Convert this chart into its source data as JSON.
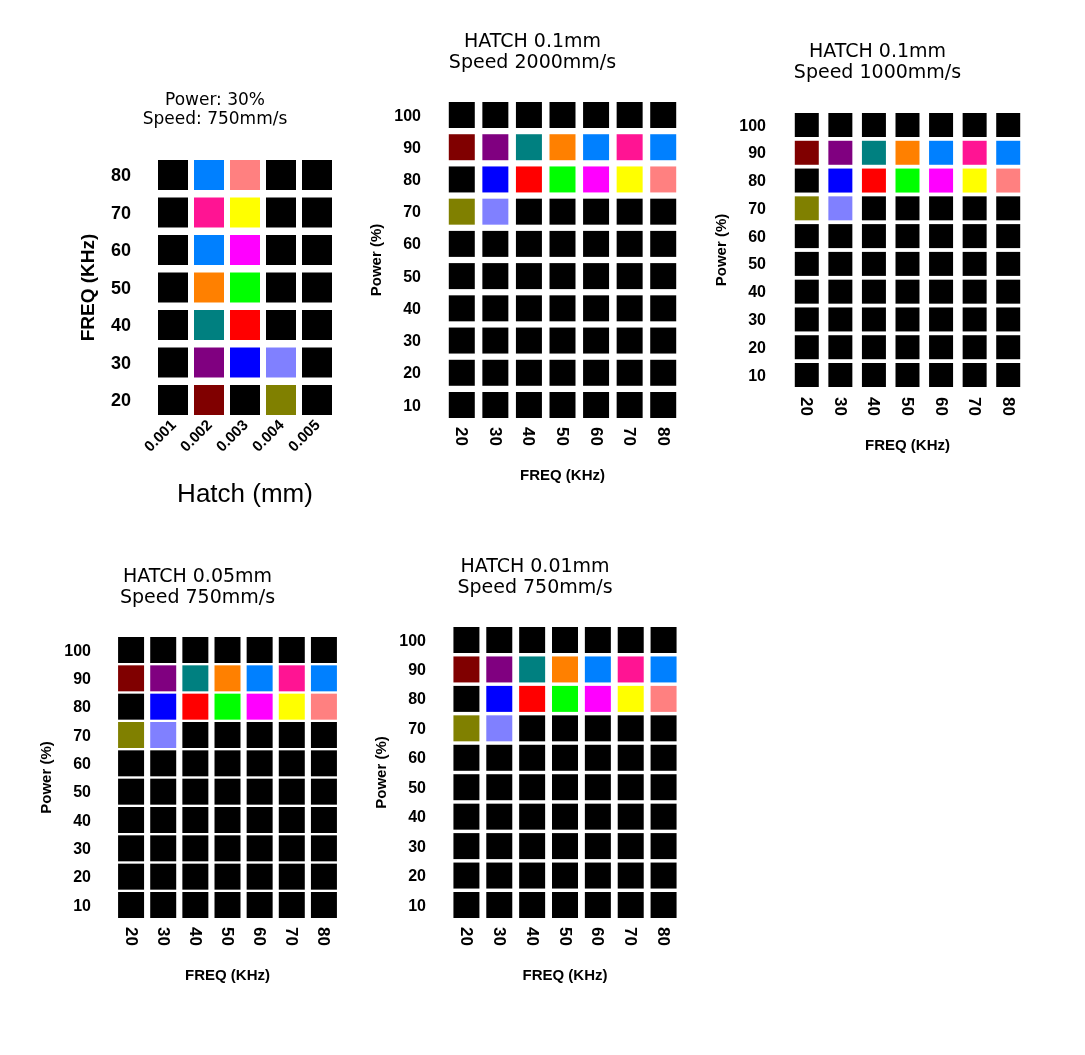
{
  "chart_data": [
    {
      "type": "scatter",
      "title": "Power: 30%",
      "subtitle": "Speed: 750mm/s",
      "xlabel": "Hatch (mm)",
      "ylabel": "FREQ (KHz)",
      "categories": [
        "0.001",
        "0.002",
        "0.003",
        "0.004",
        "0.005"
      ],
      "ylim": [
        20,
        80
      ],
      "yticks": [
        20,
        30,
        40,
        50,
        60,
        70,
        80
      ],
      "marker": "square",
      "series": [
        {
          "values": [
            80,
            80,
            80,
            80,
            80
          ],
          "colors": [
            "#000000",
            "#0080ff",
            "#ff8080",
            "#000000",
            "#000000"
          ]
        },
        {
          "values": [
            70,
            70,
            70,
            70,
            70
          ],
          "colors": [
            "#000000",
            "#ff1493",
            "#ffff00",
            "#000000",
            "#000000"
          ]
        },
        {
          "values": [
            60,
            60,
            60,
            60,
            60
          ],
          "colors": [
            "#000000",
            "#0080ff",
            "#ff00ff",
            "#000000",
            "#000000"
          ]
        },
        {
          "values": [
            50,
            50,
            50,
            50,
            50
          ],
          "colors": [
            "#000000",
            "#ff8000",
            "#00ff00",
            "#000000",
            "#000000"
          ]
        },
        {
          "values": [
            40,
            40,
            40,
            40,
            40
          ],
          "colors": [
            "#000000",
            "#008080",
            "#ff0000",
            "#000000",
            "#000000"
          ]
        },
        {
          "values": [
            30,
            30,
            30,
            30,
            30
          ],
          "colors": [
            "#000000",
            "#800080",
            "#0000ff",
            "#8080ff",
            "#000000"
          ]
        },
        {
          "values": [
            20,
            20,
            20,
            20,
            20
          ],
          "colors": [
            "#000000",
            "#800000",
            "#000000",
            "#808000",
            "#000000"
          ]
        }
      ]
    },
    {
      "type": "scatter",
      "title": "HATCH 0.1mm",
      "subtitle": "Speed 2000mm/s",
      "xlabel": "FREQ (KHz)",
      "ylabel": "Power (%)",
      "categories": [
        "20",
        "30",
        "40",
        "50",
        "60",
        "70",
        "80"
      ],
      "ylim": [
        10,
        100
      ],
      "yticks": [
        10,
        20,
        30,
        40,
        50,
        60,
        70,
        80,
        90,
        100
      ],
      "marker": "square",
      "series": [
        {
          "values": [
            100,
            100,
            100,
            100,
            100,
            100,
            100
          ],
          "colors": [
            "#000000",
            "#000000",
            "#000000",
            "#000000",
            "#000000",
            "#000000",
            "#000000"
          ]
        },
        {
          "values": [
            90,
            90,
            90,
            90,
            90,
            90,
            90
          ],
          "colors": [
            "#800000",
            "#800080",
            "#008080",
            "#ff8000",
            "#0080ff",
            "#ff1493",
            "#0080ff"
          ]
        },
        {
          "values": [
            80,
            80,
            80,
            80,
            80,
            80,
            80
          ],
          "colors": [
            "#000000",
            "#0000ff",
            "#ff0000",
            "#00ff00",
            "#ff00ff",
            "#ffff00",
            "#ff8080"
          ]
        },
        {
          "values": [
            70,
            70,
            70,
            70,
            70,
            70,
            70
          ],
          "colors": [
            "#808000",
            "#8080ff",
            "#000000",
            "#000000",
            "#000000",
            "#000000",
            "#000000"
          ]
        },
        {
          "values": [
            60,
            60,
            60,
            60,
            60,
            60,
            60
          ],
          "colors": [
            "#000000",
            "#000000",
            "#000000",
            "#000000",
            "#000000",
            "#000000",
            "#000000"
          ]
        },
        {
          "values": [
            50,
            50,
            50,
            50,
            50,
            50,
            50
          ],
          "colors": [
            "#000000",
            "#000000",
            "#000000",
            "#000000",
            "#000000",
            "#000000",
            "#000000"
          ]
        },
        {
          "values": [
            40,
            40,
            40,
            40,
            40,
            40,
            40
          ],
          "colors": [
            "#000000",
            "#000000",
            "#000000",
            "#000000",
            "#000000",
            "#000000",
            "#000000"
          ]
        },
        {
          "values": [
            30,
            30,
            30,
            30,
            30,
            30,
            30
          ],
          "colors": [
            "#000000",
            "#000000",
            "#000000",
            "#000000",
            "#000000",
            "#000000",
            "#000000"
          ]
        },
        {
          "values": [
            20,
            20,
            20,
            20,
            20,
            20,
            20
          ],
          "colors": [
            "#000000",
            "#000000",
            "#000000",
            "#000000",
            "#000000",
            "#000000",
            "#000000"
          ]
        },
        {
          "values": [
            10,
            10,
            10,
            10,
            10,
            10,
            10
          ],
          "colors": [
            "#000000",
            "#000000",
            "#000000",
            "#000000",
            "#000000",
            "#000000",
            "#000000"
          ]
        }
      ]
    },
    {
      "type": "scatter",
      "title": "HATCH 0.1mm",
      "subtitle": "Speed 1000mm/s",
      "xlabel": "FREQ (KHz)",
      "ylabel": "Power (%)",
      "categories": [
        "20",
        "30",
        "40",
        "50",
        "60",
        "70",
        "80"
      ],
      "ylim": [
        10,
        100
      ],
      "yticks": [
        10,
        20,
        30,
        40,
        50,
        60,
        70,
        80,
        90,
        100
      ],
      "marker": "square",
      "series": [
        {
          "values": [
            100,
            100,
            100,
            100,
            100,
            100,
            100
          ],
          "colors": [
            "#000000",
            "#000000",
            "#000000",
            "#000000",
            "#000000",
            "#000000",
            "#000000"
          ]
        },
        {
          "values": [
            90,
            90,
            90,
            90,
            90,
            90,
            90
          ],
          "colors": [
            "#800000",
            "#800080",
            "#008080",
            "#ff8000",
            "#0080ff",
            "#ff1493",
            "#0080ff"
          ]
        },
        {
          "values": [
            80,
            80,
            80,
            80,
            80,
            80,
            80
          ],
          "colors": [
            "#000000",
            "#0000ff",
            "#ff0000",
            "#00ff00",
            "#ff00ff",
            "#ffff00",
            "#ff8080"
          ]
        },
        {
          "values": [
            70,
            70,
            70,
            70,
            70,
            70,
            70
          ],
          "colors": [
            "#808000",
            "#8080ff",
            "#000000",
            "#000000",
            "#000000",
            "#000000",
            "#000000"
          ]
        },
        {
          "values": [
            60,
            60,
            60,
            60,
            60,
            60,
            60
          ],
          "colors": [
            "#000000",
            "#000000",
            "#000000",
            "#000000",
            "#000000",
            "#000000",
            "#000000"
          ]
        },
        {
          "values": [
            50,
            50,
            50,
            50,
            50,
            50,
            50
          ],
          "colors": [
            "#000000",
            "#000000",
            "#000000",
            "#000000",
            "#000000",
            "#000000",
            "#000000"
          ]
        },
        {
          "values": [
            40,
            40,
            40,
            40,
            40,
            40,
            40
          ],
          "colors": [
            "#000000",
            "#000000",
            "#000000",
            "#000000",
            "#000000",
            "#000000",
            "#000000"
          ]
        },
        {
          "values": [
            30,
            30,
            30,
            30,
            30,
            30,
            30
          ],
          "colors": [
            "#000000",
            "#000000",
            "#000000",
            "#000000",
            "#000000",
            "#000000",
            "#000000"
          ]
        },
        {
          "values": [
            20,
            20,
            20,
            20,
            20,
            20,
            20
          ],
          "colors": [
            "#000000",
            "#000000",
            "#000000",
            "#000000",
            "#000000",
            "#000000",
            "#000000"
          ]
        },
        {
          "values": [
            10,
            10,
            10,
            10,
            10,
            10,
            10
          ],
          "colors": [
            "#000000",
            "#000000",
            "#000000",
            "#000000",
            "#000000",
            "#000000",
            "#000000"
          ]
        }
      ]
    },
    {
      "type": "scatter",
      "title": "HATCH 0.05mm",
      "subtitle": "Speed 750mm/s",
      "xlabel": "FREQ (KHz)",
      "ylabel": "Power (%)",
      "categories": [
        "20",
        "30",
        "40",
        "50",
        "60",
        "70",
        "80"
      ],
      "ylim": [
        10,
        100
      ],
      "yticks": [
        10,
        20,
        30,
        40,
        50,
        60,
        70,
        80,
        90,
        100
      ],
      "marker": "square",
      "series": [
        {
          "values": [
            100,
            100,
            100,
            100,
            100,
            100,
            100
          ],
          "colors": [
            "#000000",
            "#000000",
            "#000000",
            "#000000",
            "#000000",
            "#000000",
            "#000000"
          ]
        },
        {
          "values": [
            90,
            90,
            90,
            90,
            90,
            90,
            90
          ],
          "colors": [
            "#800000",
            "#800080",
            "#008080",
            "#ff8000",
            "#0080ff",
            "#ff1493",
            "#0080ff"
          ]
        },
        {
          "values": [
            80,
            80,
            80,
            80,
            80,
            80,
            80
          ],
          "colors": [
            "#000000",
            "#0000ff",
            "#ff0000",
            "#00ff00",
            "#ff00ff",
            "#ffff00",
            "#ff8080"
          ]
        },
        {
          "values": [
            70,
            70,
            70,
            70,
            70,
            70,
            70
          ],
          "colors": [
            "#808000",
            "#8080ff",
            "#000000",
            "#000000",
            "#000000",
            "#000000",
            "#000000"
          ]
        },
        {
          "values": [
            60,
            60,
            60,
            60,
            60,
            60,
            60
          ],
          "colors": [
            "#000000",
            "#000000",
            "#000000",
            "#000000",
            "#000000",
            "#000000",
            "#000000"
          ]
        },
        {
          "values": [
            50,
            50,
            50,
            50,
            50,
            50,
            50
          ],
          "colors": [
            "#000000",
            "#000000",
            "#000000",
            "#000000",
            "#000000",
            "#000000",
            "#000000"
          ]
        },
        {
          "values": [
            40,
            40,
            40,
            40,
            40,
            40,
            40
          ],
          "colors": [
            "#000000",
            "#000000",
            "#000000",
            "#000000",
            "#000000",
            "#000000",
            "#000000"
          ]
        },
        {
          "values": [
            30,
            30,
            30,
            30,
            30,
            30,
            30
          ],
          "colors": [
            "#000000",
            "#000000",
            "#000000",
            "#000000",
            "#000000",
            "#000000",
            "#000000"
          ]
        },
        {
          "values": [
            20,
            20,
            20,
            20,
            20,
            20,
            20
          ],
          "colors": [
            "#000000",
            "#000000",
            "#000000",
            "#000000",
            "#000000",
            "#000000",
            "#000000"
          ]
        },
        {
          "values": [
            10,
            10,
            10,
            10,
            10,
            10,
            10
          ],
          "colors": [
            "#000000",
            "#000000",
            "#000000",
            "#000000",
            "#000000",
            "#000000",
            "#000000"
          ]
        }
      ]
    },
    {
      "type": "scatter",
      "title": "HATCH 0.01mm",
      "subtitle": "Speed 750mm/s",
      "xlabel": "FREQ (KHz)",
      "ylabel": "Power (%)",
      "categories": [
        "20",
        "30",
        "40",
        "50",
        "60",
        "70",
        "80"
      ],
      "ylim": [
        10,
        100
      ],
      "yticks": [
        10,
        20,
        30,
        40,
        50,
        60,
        70,
        80,
        90,
        100
      ],
      "marker": "square",
      "series": [
        {
          "values": [
            100,
            100,
            100,
            100,
            100,
            100,
            100
          ],
          "colors": [
            "#000000",
            "#000000",
            "#000000",
            "#000000",
            "#000000",
            "#000000",
            "#000000"
          ]
        },
        {
          "values": [
            90,
            90,
            90,
            90,
            90,
            90,
            90
          ],
          "colors": [
            "#800000",
            "#800080",
            "#008080",
            "#ff8000",
            "#0080ff",
            "#ff1493",
            "#0080ff"
          ]
        },
        {
          "values": [
            80,
            80,
            80,
            80,
            80,
            80,
            80
          ],
          "colors": [
            "#000000",
            "#0000ff",
            "#ff0000",
            "#00ff00",
            "#ff00ff",
            "#ffff00",
            "#ff8080"
          ]
        },
        {
          "values": [
            70,
            70,
            70,
            70,
            70,
            70,
            70
          ],
          "colors": [
            "#808000",
            "#8080ff",
            "#000000",
            "#000000",
            "#000000",
            "#000000",
            "#000000"
          ]
        },
        {
          "values": [
            60,
            60,
            60,
            60,
            60,
            60,
            60
          ],
          "colors": [
            "#000000",
            "#000000",
            "#000000",
            "#000000",
            "#000000",
            "#000000",
            "#000000"
          ]
        },
        {
          "values": [
            50,
            50,
            50,
            50,
            50,
            50,
            50
          ],
          "colors": [
            "#000000",
            "#000000",
            "#000000",
            "#000000",
            "#000000",
            "#000000",
            "#000000"
          ]
        },
        {
          "values": [
            40,
            40,
            40,
            40,
            40,
            40,
            40
          ],
          "colors": [
            "#000000",
            "#000000",
            "#000000",
            "#000000",
            "#000000",
            "#000000",
            "#000000"
          ]
        },
        {
          "values": [
            30,
            30,
            30,
            30,
            30,
            30,
            30
          ],
          "colors": [
            "#000000",
            "#000000",
            "#000000",
            "#000000",
            "#000000",
            "#000000",
            "#000000"
          ]
        },
        {
          "values": [
            20,
            20,
            20,
            20,
            20,
            20,
            20
          ],
          "colors": [
            "#000000",
            "#000000",
            "#000000",
            "#000000",
            "#000000",
            "#000000",
            "#000000"
          ]
        },
        {
          "values": [
            10,
            10,
            10,
            10,
            10,
            10,
            10
          ],
          "colors": [
            "#000000",
            "#000000",
            "#000000",
            "#000000",
            "#000000",
            "#000000",
            "#000000"
          ]
        }
      ]
    }
  ]
}
